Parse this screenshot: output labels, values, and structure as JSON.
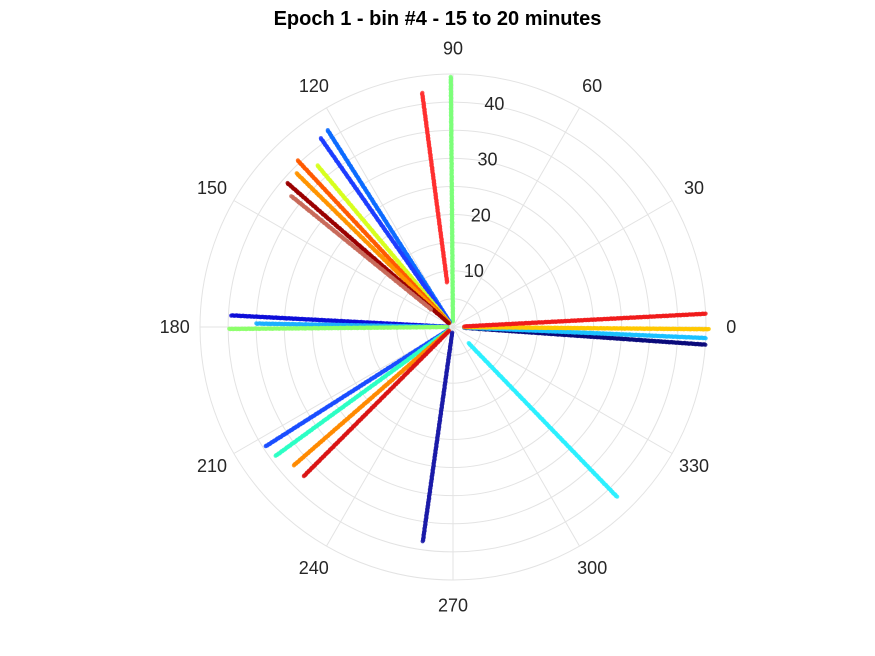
{
  "chart_data": {
    "type": "scatter",
    "subtype": "polar",
    "title": "Epoch 1 - bin #4 - 15 to 20 minutes",
    "theta_unit": "degrees",
    "theta_ticks": [
      "0",
      "30",
      "60",
      "90",
      "120",
      "150",
      "180",
      "210",
      "240",
      "270",
      "300",
      "330"
    ],
    "r_ticks": [
      "10",
      "20",
      "30",
      "40"
    ],
    "r_tick_values": [
      10,
      20,
      30,
      40
    ],
    "rlim": [
      0,
      45
    ],
    "grid": true,
    "series": [
      {
        "theta": 90.5,
        "r_start": 1,
        "r_end": 44.5,
        "color": "#7cff79"
      },
      {
        "theta": 97.5,
        "r_start": 8,
        "r_end": 42,
        "color": "#ff2f2f"
      },
      {
        "theta": 122.5,
        "r_start": 1,
        "r_end": 41.5,
        "color": "#0c6cff"
      },
      {
        "theta": 125,
        "r_start": 1,
        "r_end": 41,
        "color": "#1e3dff"
      },
      {
        "theta": 130,
        "r_start": 1,
        "r_end": 37.5,
        "color": "#d7ff1f"
      },
      {
        "theta": 133,
        "r_start": 1,
        "r_end": 40.5,
        "color": "#ff5a00"
      },
      {
        "theta": 135.5,
        "r_start": 1,
        "r_end": 39,
        "color": "#ff9400"
      },
      {
        "theta": 139,
        "r_start": 1,
        "r_end": 39,
        "color": "#9a0000"
      },
      {
        "theta": 141,
        "r_start": 5,
        "r_end": 37,
        "color": "#c86a5a"
      },
      {
        "theta": 177,
        "r_start": 1,
        "r_end": 39.5,
        "color": "#0c0cd8"
      },
      {
        "theta": 179,
        "r_start": 2,
        "r_end": 35,
        "color": "#1aafff"
      },
      {
        "theta": 180.5,
        "r_start": 1,
        "r_end": 39.8,
        "color": "#8cff6a"
      },
      {
        "theta": 212.5,
        "r_start": 1,
        "r_end": 39.5,
        "color": "#1a4dff"
      },
      {
        "theta": 216,
        "r_start": 1,
        "r_end": 39,
        "color": "#2cffc4"
      },
      {
        "theta": 221,
        "r_start": 1,
        "r_end": 37.5,
        "color": "#ff8a00"
      },
      {
        "theta": 225,
        "r_start": 1,
        "r_end": 37.5,
        "color": "#d91515"
      },
      {
        "theta": 262,
        "r_start": 1,
        "r_end": 38.5,
        "color": "#1a1aa8"
      },
      {
        "theta": 314,
        "r_start": 4,
        "r_end": 42,
        "color": "#2cf0ff"
      },
      {
        "theta": 356,
        "r_start": 2,
        "r_end": 45,
        "color": "#0a0a7a"
      },
      {
        "theta": 357.5,
        "r_start": 2,
        "r_end": 45,
        "color": "#1ac0ff"
      },
      {
        "theta": 359.5,
        "r_start": 2,
        "r_end": 45.5,
        "color": "#ffc800"
      },
      {
        "theta": 3,
        "r_start": 2,
        "r_end": 45,
        "color": "#f01c1c"
      }
    ],
    "colors": {
      "grid": "#e3e3e3",
      "tick_text": "#262626"
    }
  }
}
